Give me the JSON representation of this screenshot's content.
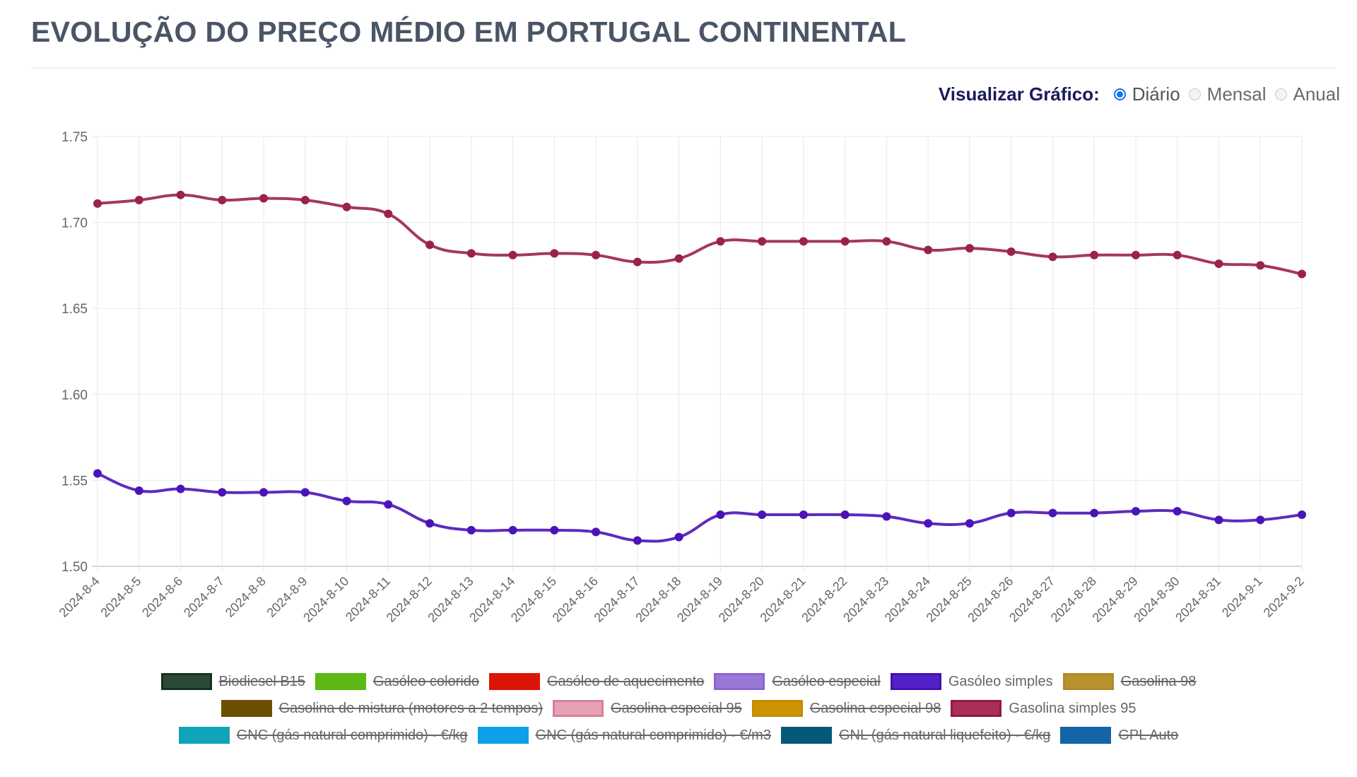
{
  "page": {
    "title": "EVOLUÇÃO DO PREÇO MÉDIO EM PORTUGAL CONTINENTAL"
  },
  "view_selector": {
    "label": "Visualizar Gráfico:",
    "options": [
      {
        "label": "Diário",
        "checked": true
      },
      {
        "label": "Mensal",
        "checked": false
      },
      {
        "label": "Anual",
        "checked": false
      }
    ]
  },
  "chart_data": {
    "type": "line",
    "title": "",
    "xlabel": "",
    "ylabel": "",
    "ylim": [
      1.5,
      1.75
    ],
    "yticks": [
      "1.50",
      "1.55",
      "1.60",
      "1.65",
      "1.70",
      "1.75"
    ],
    "grid": true,
    "legend_position": "bottom",
    "x": [
      "2024-8-4",
      "2024-8-5",
      "2024-8-6",
      "2024-8-7",
      "2024-8-8",
      "2024-8-9",
      "2024-8-10",
      "2024-8-11",
      "2024-8-12",
      "2024-8-13",
      "2024-8-14",
      "2024-8-15",
      "2024-8-16",
      "2024-8-17",
      "2024-8-18",
      "2024-8-19",
      "2024-8-20",
      "2024-8-21",
      "2024-8-22",
      "2024-8-23",
      "2024-8-24",
      "2024-8-25",
      "2024-8-26",
      "2024-8-27",
      "2024-8-28",
      "2024-8-29",
      "2024-8-30",
      "2024-8-31",
      "2024-9-1",
      "2024-9-2"
    ],
    "series": [
      {
        "name": "Gasolina simples 95",
        "color": "#9b2248",
        "values": [
          1.711,
          1.713,
          1.716,
          1.713,
          1.714,
          1.713,
          1.709,
          1.705,
          1.687,
          1.682,
          1.681,
          1.682,
          1.681,
          1.677,
          1.679,
          1.689,
          1.689,
          1.689,
          1.689,
          1.689,
          1.684,
          1.685,
          1.683,
          1.68,
          1.681,
          1.681,
          1.681,
          1.676,
          1.675,
          1.67
        ]
      },
      {
        "name": "Gasóleo simples",
        "color": "#4b14b8",
        "values": [
          1.554,
          1.544,
          1.545,
          1.543,
          1.543,
          1.543,
          1.538,
          1.536,
          1.525,
          1.521,
          1.521,
          1.521,
          1.52,
          1.515,
          1.517,
          1.53,
          1.53,
          1.53,
          1.53,
          1.529,
          1.525,
          1.525,
          1.531,
          1.531,
          1.531,
          1.532,
          1.532,
          1.527,
          1.527,
          1.53
        ]
      }
    ],
    "legend": [
      [
        {
          "label": "Biodiesel B15",
          "color": "#2a4a36",
          "border": "#163020",
          "hidden": true
        },
        {
          "label": "Gasóleo colorido",
          "color": "#5cb814",
          "border": "#5cb814",
          "hidden": true
        },
        {
          "label": "Gasóleo de aquecimento",
          "color": "#dd1408",
          "border": "#dd1408",
          "hidden": true
        },
        {
          "label": "Gasóleo especial",
          "color": "#9a78d8",
          "border": "#8a66d0",
          "hidden": true
        },
        {
          "label": "Gasóleo simples",
          "color": "#5320c8",
          "border": "#4412b0",
          "hidden": false
        },
        {
          "label": "Gasolina 98",
          "color": "#b8922e",
          "border": "#b08a28",
          "hidden": true
        }
      ],
      [
        {
          "label": "Gasolina de mistura (motores a 2 tempos)",
          "color": "#6e4e00",
          "border": "#6e4e00",
          "hidden": true
        },
        {
          "label": "Gasolina especial 95",
          "color": "#e8a0b4",
          "border": "#d48098",
          "hidden": true
        },
        {
          "label": "Gasolina especial 98",
          "color": "#cc9400",
          "border": "#c48c00",
          "hidden": true
        },
        {
          "label": "Gasolina simples 95",
          "color": "#a83058",
          "border": "#8e1a40",
          "hidden": false
        }
      ],
      [
        {
          "label": "GNC (gás natural comprimido) - €/kg",
          "color": "#10a4b8",
          "border": "#10a4b8",
          "hidden": true
        },
        {
          "label": "GNC (gás natural comprimido) - €/m3",
          "color": "#0ca0e8",
          "border": "#0ca0e8",
          "hidden": true
        },
        {
          "label": "GNL (gás natural liquefeito) - €/kg",
          "color": "#04587a",
          "border": "#04587a",
          "hidden": true
        },
        {
          "label": "GPL Auto",
          "color": "#1464a8",
          "border": "#1464a8",
          "hidden": true
        }
      ]
    ]
  }
}
